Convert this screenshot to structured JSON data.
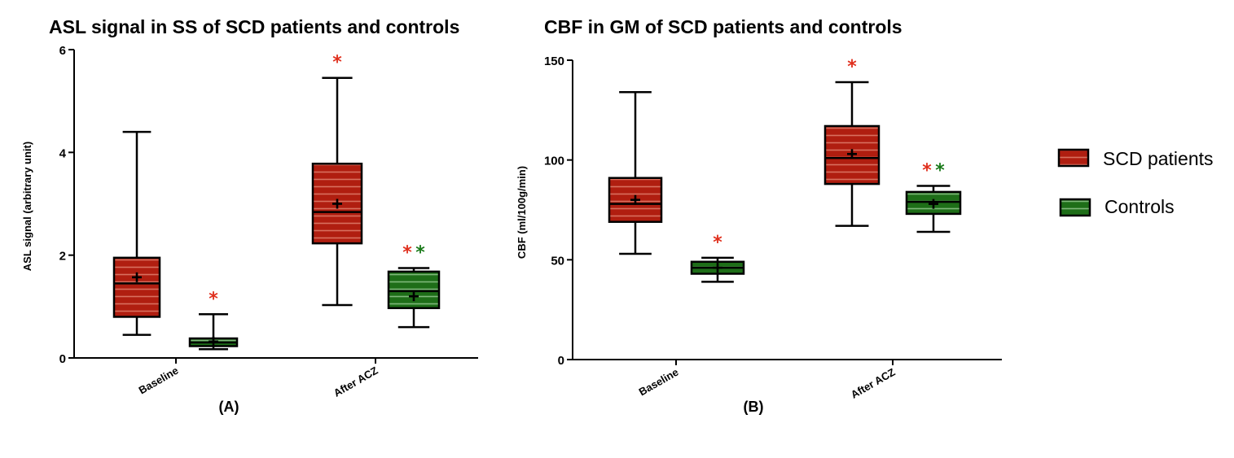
{
  "colors": {
    "scd": "#b01e10",
    "scd_stripe": "#d8705e",
    "control": "#1e6e18",
    "control_stripe": "#7fb87a",
    "star_red": "#e0301e",
    "star_green": "#1a7a1a"
  },
  "legend": {
    "items": [
      {
        "label": "SCD patients",
        "group": "scd"
      },
      {
        "label": "Controls",
        "group": "control"
      }
    ]
  },
  "chart_data": [
    {
      "type": "box",
      "title": "ASL signal in SS of SCD patients and controls",
      "ylabel": "ASL signal (arbitrary unit)",
      "xlabel": "",
      "panel_label": "(A)",
      "ylim": [
        0,
        6
      ],
      "yticks": [
        0,
        2,
        4,
        6
      ],
      "categories": [
        "Baseline",
        "After ACZ"
      ],
      "series": [
        {
          "name": "SCD patients",
          "group": "scd",
          "boxes": [
            {
              "min": 0.45,
              "q1": 0.8,
              "median": 1.45,
              "q3": 1.95,
              "max": 4.4,
              "mean": 1.57
            },
            {
              "min": 1.03,
              "q1": 2.23,
              "median": 2.84,
              "q3": 3.78,
              "max": 5.45,
              "mean": 3.0
            }
          ]
        },
        {
          "name": "Controls",
          "group": "control",
          "boxes": [
            {
              "min": 0.17,
              "q1": 0.23,
              "median": 0.3,
              "q3": 0.38,
              "max": 0.85,
              "mean": 0.32
            },
            {
              "min": 0.6,
              "q1": 0.97,
              "median": 1.3,
              "q3": 1.68,
              "max": 1.75,
              "mean": 1.2
            }
          ]
        }
      ],
      "annotations": [
        {
          "category": "Baseline",
          "series": "Controls",
          "stars": [
            "red"
          ]
        },
        {
          "category": "After ACZ",
          "series": "SCD patients",
          "stars": [
            "red"
          ]
        },
        {
          "category": "After ACZ",
          "series": "Controls",
          "stars": [
            "red",
            "green"
          ]
        }
      ]
    },
    {
      "type": "box",
      "title": "CBF in GM of SCD patients and controls",
      "ylabel": "CBF (ml/100g/min)",
      "xlabel": "",
      "panel_label": "(B)",
      "ylim": [
        0,
        150
      ],
      "yticks": [
        0,
        50,
        100,
        150
      ],
      "categories": [
        "Baseline",
        "After ACZ"
      ],
      "series": [
        {
          "name": "SCD patients",
          "group": "scd",
          "boxes": [
            {
              "min": 53,
              "q1": 69,
              "median": 78,
              "q3": 91,
              "max": 134,
              "mean": 80
            },
            {
              "min": 67,
              "q1": 88,
              "median": 101,
              "q3": 117,
              "max": 139,
              "mean": 103
            }
          ]
        },
        {
          "name": "Controls",
          "group": "control",
          "boxes": [
            {
              "min": 39,
              "q1": 43,
              "median": 46,
              "q3": 49,
              "max": 51,
              "mean": 46
            },
            {
              "min": 64,
              "q1": 73,
              "median": 79,
              "q3": 84,
              "max": 87,
              "mean": 78
            }
          ]
        }
      ],
      "annotations": [
        {
          "category": "Baseline",
          "series": "Controls",
          "stars": [
            "red"
          ]
        },
        {
          "category": "After ACZ",
          "series": "SCD patients",
          "stars": [
            "red"
          ]
        },
        {
          "category": "After ACZ",
          "series": "Controls",
          "stars": [
            "red",
            "green"
          ]
        }
      ]
    }
  ]
}
